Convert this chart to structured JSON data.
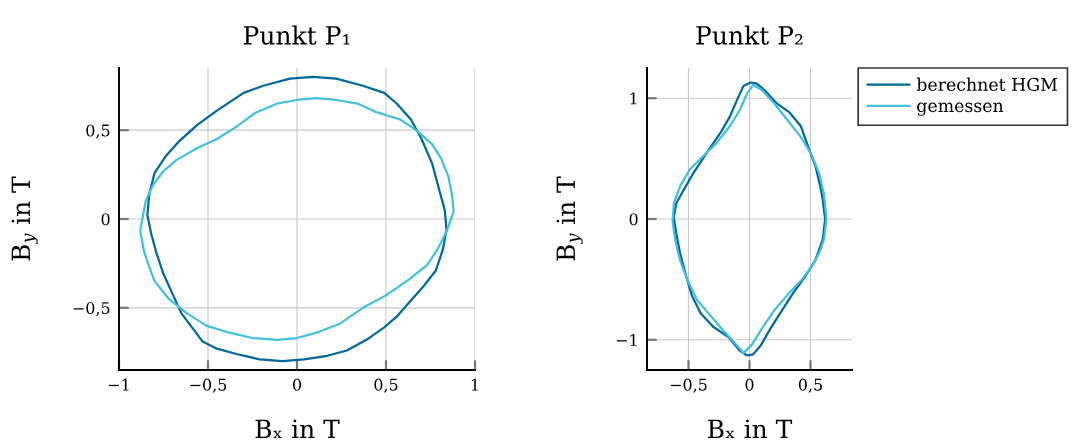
{
  "chart_data": [
    {
      "type": "line",
      "title": "Punkt P₁",
      "xlabel": "Bₓ in T",
      "ylabel": "B$_{y}$ in T",
      "xlim": [
        -1,
        1
      ],
      "ylim": [
        -0.85,
        0.85
      ],
      "xticks": [
        {
          "value": -1,
          "label": "−1"
        },
        {
          "value": -0.5,
          "label": "−0,5"
        },
        0,
        {
          "value": 0.5,
          "label": "0,5"
        },
        1
      ],
      "yticks": [
        {
          "value": -0.5,
          "label": "−0,5"
        },
        0,
        {
          "value": 0.5,
          "label": "0,5"
        }
      ],
      "grid": true,
      "legend": false,
      "series": [
        {
          "color": "#00679a",
          "x": [
            -0.84,
            -0.83,
            -0.8,
            -0.74,
            -0.66,
            -0.56,
            -0.45,
            -0.3,
            -0.19,
            -0.04,
            0.09,
            0.22,
            0.37,
            0.49,
            0.56,
            0.64,
            0.7,
            0.76,
            0.8,
            0.83,
            0.84,
            0.82,
            0.78,
            0.71,
            0.63,
            0.56,
            0.49,
            0.39,
            0.28,
            0.17,
            0.04,
            -0.08,
            -0.21,
            -0.34,
            -0.45,
            -0.53,
            -0.59,
            -0.65,
            -0.7,
            -0.75,
            -0.79,
            -0.82,
            -0.84
          ],
          "values": [
            0.03,
            0.14,
            0.26,
            0.35,
            0.44,
            0.53,
            0.61,
            0.71,
            0.75,
            0.79,
            0.8,
            0.79,
            0.75,
            0.71,
            0.65,
            0.56,
            0.45,
            0.31,
            0.16,
            0.05,
            -0.06,
            -0.17,
            -0.29,
            -0.38,
            -0.47,
            -0.55,
            -0.61,
            -0.68,
            -0.74,
            -0.77,
            -0.79,
            -0.8,
            -0.79,
            -0.76,
            -0.73,
            -0.69,
            -0.61,
            -0.53,
            -0.42,
            -0.31,
            -0.19,
            -0.08,
            0.02
          ]
        },
        {
          "color": "#42bfdc",
          "x": [
            -0.88,
            -0.85,
            -0.81,
            -0.75,
            -0.68,
            -0.56,
            -0.45,
            -0.34,
            -0.23,
            -0.11,
            0.0,
            0.11,
            0.22,
            0.34,
            0.45,
            0.58,
            0.67,
            0.76,
            0.81,
            0.85,
            0.87,
            0.88,
            0.84,
            0.79,
            0.73,
            0.63,
            0.5,
            0.37,
            0.24,
            0.11,
            0.0,
            -0.11,
            -0.25,
            -0.38,
            -0.51,
            -0.62,
            -0.72,
            -0.8,
            -0.83,
            -0.86,
            -0.88
          ],
          "values": [
            -0.06,
            0.1,
            0.19,
            0.27,
            0.33,
            0.4,
            0.45,
            0.52,
            0.6,
            0.65,
            0.67,
            0.68,
            0.67,
            0.65,
            0.6,
            0.56,
            0.5,
            0.42,
            0.34,
            0.24,
            0.14,
            0.04,
            -0.07,
            -0.17,
            -0.26,
            -0.34,
            -0.43,
            -0.5,
            -0.59,
            -0.64,
            -0.67,
            -0.68,
            -0.67,
            -0.64,
            -0.6,
            -0.53,
            -0.45,
            -0.35,
            -0.27,
            -0.18,
            -0.07
          ]
        }
      ]
    },
    {
      "type": "line",
      "title": "Punkt P₂",
      "xlabel": "Bₓ in T",
      "ylabel": "B$_{y}$ in T",
      "xlim": [
        -0.84,
        0.84
      ],
      "ylim": [
        -1.25,
        1.25
      ],
      "xticks": [
        {
          "value": -0.5,
          "label": "−0,5"
        },
        0,
        {
          "value": 0.5,
          "label": "0,5"
        }
      ],
      "yticks": [
        {
          "value": -1,
          "label": "−1"
        },
        0,
        1
      ],
      "grid": true,
      "legend": "right",
      "series": [
        {
          "name": "berechnet HGM",
          "color": "#00679a",
          "x": [
            -0.62,
            -0.6,
            -0.54,
            -0.46,
            -0.35,
            -0.24,
            -0.16,
            -0.1,
            -0.05,
            0.01,
            0.06,
            0.13,
            0.22,
            0.33,
            0.42,
            0.48,
            0.54,
            0.58,
            0.6,
            0.62,
            0.6,
            0.54,
            0.46,
            0.36,
            0.27,
            0.17,
            0.09,
            0.03,
            -0.02,
            -0.08,
            -0.17,
            -0.3,
            -0.4,
            -0.47,
            -0.52,
            -0.57,
            -0.6,
            -0.62
          ],
          "values": [
            0.02,
            0.13,
            0.24,
            0.38,
            0.55,
            0.71,
            0.85,
            0.99,
            1.1,
            1.13,
            1.12,
            1.06,
            0.96,
            0.88,
            0.77,
            0.6,
            0.44,
            0.27,
            0.16,
            0.0,
            -0.17,
            -0.34,
            -0.47,
            -0.61,
            -0.75,
            -0.91,
            -1.05,
            -1.12,
            -1.13,
            -1.09,
            -0.98,
            -0.89,
            -0.78,
            -0.64,
            -0.47,
            -0.28,
            -0.12,
            0.01
          ]
        },
        {
          "name": "gemessen",
          "color": "#42bfdc",
          "x": [
            -0.63,
            -0.62,
            -0.57,
            -0.49,
            -0.38,
            -0.27,
            -0.16,
            -0.08,
            -0.02,
            0.03,
            0.1,
            0.2,
            0.31,
            0.42,
            0.51,
            0.57,
            0.61,
            0.63,
            0.61,
            0.58,
            0.52,
            0.43,
            0.31,
            0.2,
            0.1,
            0.02,
            -0.05,
            -0.1,
            -0.21,
            -0.32,
            -0.43,
            -0.51,
            -0.57,
            -0.61,
            -0.63
          ],
          "values": [
            -0.01,
            0.13,
            0.27,
            0.41,
            0.52,
            0.63,
            0.77,
            0.9,
            1.04,
            1.11,
            1.07,
            0.96,
            0.82,
            0.68,
            0.53,
            0.38,
            0.21,
            0.0,
            -0.17,
            -0.26,
            -0.38,
            -0.5,
            -0.63,
            -0.76,
            -0.91,
            -1.04,
            -1.11,
            -1.05,
            -0.93,
            -0.8,
            -0.67,
            -0.5,
            -0.34,
            -0.17,
            -0.02
          ]
        }
      ]
    }
  ]
}
